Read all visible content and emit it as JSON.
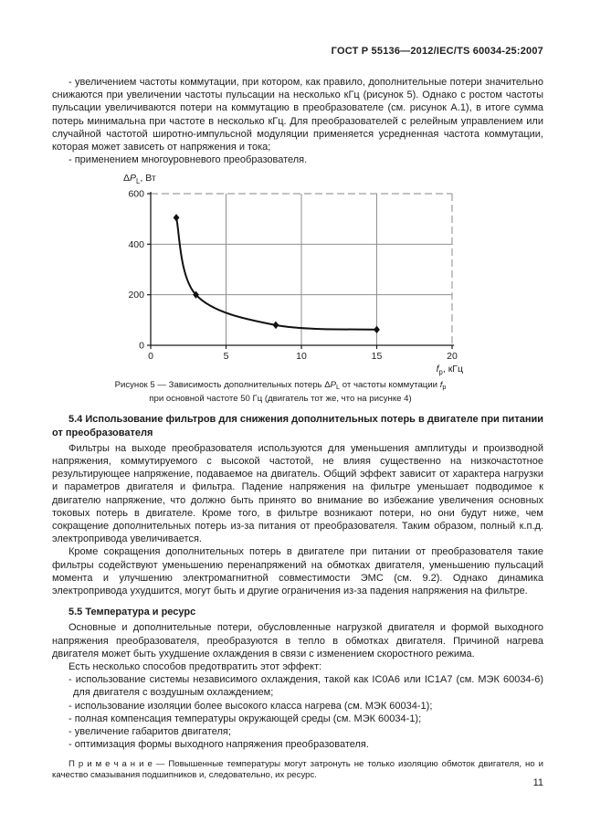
{
  "page": {
    "header": "ГОСТ Р 55136—2012/IEC/TS 60034-25:2007",
    "number": "11"
  },
  "intro": {
    "paragraphs": [
      "- увеличением частоты коммутации, при котором, как правило, дополнительные потери значительно снижаются при увеличении частоты пульсации на несколько кГц (рисунок 5). Однако с ростом частоты пульсации увеличиваются потери на коммутацию в преобразователе (см. рисунок А.1), в итоге сумма потерь минимальна при частоте в несколько кГц. Для преобразователей с релейным управлением или случайной частотой широтно-импульсной модуляции применяется усредненная частота коммутации, которая может зависеть от напряжения и тока;",
      "- применением многоуровневого преобразователя."
    ]
  },
  "chart_data": {
    "type": "line",
    "x": [
      1.7,
      3,
      8.3,
      15
    ],
    "y": [
      505,
      200,
      80,
      62
    ],
    "xlabel": "f_p, кГц",
    "ylabel": "ΔP_L, Вт",
    "xlim": [
      0,
      20
    ],
    "ylim": [
      0,
      600
    ],
    "xticks": [
      0,
      5,
      10,
      15,
      20
    ],
    "yticks": [
      0,
      200,
      400,
      600
    ],
    "grid": true,
    "marker": "diamond",
    "line_color": "#111111",
    "grid_color": "#8f8f8f",
    "ylabel_parts": [
      {
        "t": "Δ"
      },
      {
        "t": "P",
        "i": 1
      },
      {
        "t": "L",
        "sub": 1
      },
      {
        "t": ", Вт"
      }
    ],
    "xlabel_parts": [
      {
        "t": "f",
        "i": 1
      },
      {
        "t": "p",
        "sub": 1
      },
      {
        "t": ", кГц"
      }
    ]
  },
  "figure": {
    "caption": {
      "p1": "Рисунок 5 — Зависимость дополнительных потерь Δ",
      "v1": "P",
      "s1": "L",
      "p2": "  от частоты коммутации ",
      "v2": "f",
      "s2": "p",
      "line2": "при основной частоте 50 Гц (двигатель тот же, что на рисунке 4)"
    }
  },
  "section_5_4": {
    "heading": "5.4 Использование фильтров для снижения дополнительных потерь в двигателе при питании от преобразователя",
    "paragraphs": [
      "Фильтры на выходе преобразователя  используются для уменьшения амплитуды и производной напряжения, коммутируемого с высокой частотой, не влияя существенно на низкочастотное результирующее напряжение, подаваемое на двигатель. Общий эффект зависит от характера нагрузки и параметров двигателя и фильтра. Падение напряжения на фильтре уменьшает подводимое к двигателю напряжение, что должно быть принято во внимание во избежание увеличения основных токовых потерь в двигателе. Кроме того, в фильтре возникают потери, но они будут ниже, чем сокращение дополнительных потерь из-за питания от преобразователя. Таким образом, полный к.п.д. электропривода увеличивается.",
      "Кроме сокращения дополнительных потерь в двигателе при питании от преобразователя такие фильтры содействуют уменьшению перенапряжений на обмотках двигателя, уменьшению пульсаций момента и улучшению электромагнитной совместимости ЭМС (см. 9.2). Однако динамика электропривода ухудшится, могут быть и другие ограничения из-за падения напряжения на фильтре."
    ]
  },
  "section_5_5": {
    "heading": "5.5 Температура и ресурс",
    "paragraphs": [
      "Основные и дополнительные потери, обусловленные нагрузкой двигателя и формой выходного напряжения преобразователя, преобразуются в тепло в обмотках двигателя. Причиной нагрева двигателя может быть ухудшение охлаждения в связи с изменением скоростного режима.",
      "Есть несколько способов предотвратить этот эффект:"
    ],
    "bullets": [
      "- использование системы независимого охлаждения,  такой  как IC0A6 или IC1A7  (см. МЭК 60034-6) для двигателя с воздушным охлаждением;",
      "- использование изоляции более высокого класса нагрева (см. МЭК 60034-1);",
      "- полная компенсация температуры окружающей среды (см. МЭК 60034-1);",
      "- увеличение габаритов двигателя;",
      "- оптимизация формы выходного напряжения преобразователя."
    ]
  },
  "note": {
    "text": "П р и м е ч а н и е — Повышенные температуры могут затронуть не только изоляцию обмоток двигателя, но и качество смазывания подшипников и, следовательно, их ресурс."
  }
}
